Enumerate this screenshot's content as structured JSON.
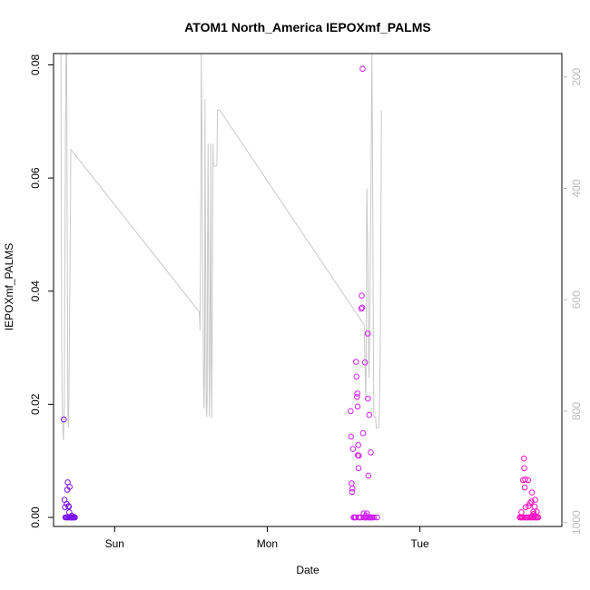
{
  "chart_data": {
    "type": "scatter",
    "title": "ATOM1 North_America IEPOXmf_PALMS",
    "xlabel": "Date",
    "ylabel": "IEPOXmf_PALMS",
    "x_ticks": [
      {
        "label": "Sun",
        "day": 1.0
      },
      {
        "label": "Mon",
        "day": 2.0
      },
      {
        "label": "Tue",
        "day": 3.0
      }
    ],
    "xlim_days": [
      0.6,
      3.93
    ],
    "y_ticks": [
      "0.00",
      "0.02",
      "0.04",
      "0.06",
      "0.08"
    ],
    "ylim": [
      -0.0016,
      0.082
    ],
    "y2_ticks": [
      "200",
      "400",
      "600",
      "800",
      "1000"
    ],
    "y2lim_reversed": [
      1007,
      158
    ],
    "series": [
      {
        "kind": "points",
        "color": "#7a10f0",
        "points": [
          [
            0.667,
            0.0173
          ],
          [
            0.672,
            0.0031
          ],
          [
            0.675,
            0.0018
          ],
          [
            0.678,
            0.0
          ],
          [
            0.683,
            0.0
          ],
          [
            0.686,
            0.0024
          ],
          [
            0.69,
            0.0049
          ],
          [
            0.693,
            0.0062
          ],
          [
            0.695,
            0.0
          ],
          [
            0.698,
            0.002
          ],
          [
            0.7,
            0.0019
          ],
          [
            0.703,
            0.0009
          ],
          [
            0.705,
            0.0054
          ],
          [
            0.708,
            0.0
          ],
          [
            0.712,
            0.0
          ],
          [
            0.716,
            0.0
          ],
          [
            0.72,
            0.0003
          ],
          [
            0.724,
            0.0
          ],
          [
            0.728,
            0.0
          ],
          [
            0.734,
            0.0001
          ],
          [
            0.74,
            0.0
          ],
          [
            0.688,
            0.0
          ],
          [
            0.702,
            0.0
          ],
          [
            0.718,
            0.0
          ],
          [
            0.736,
            0.0
          ]
        ]
      },
      {
        "kind": "points",
        "color": "#d020f0",
        "points": [
          [
            2.546,
            0.0188
          ],
          [
            2.549,
            0.0143
          ],
          [
            2.552,
            0.006
          ],
          [
            2.555,
            0.0045
          ],
          [
            2.558,
            0.0051
          ],
          [
            2.561,
            0.0121
          ],
          [
            2.565,
            0.0
          ],
          [
            2.571,
            0.0
          ],
          [
            2.575,
            0.0
          ],
          [
            2.582,
            0.0275
          ],
          [
            2.585,
            0.0249
          ],
          [
            2.588,
            0.0213
          ],
          [
            2.59,
            0.0219
          ],
          [
            2.592,
            0.0196
          ],
          [
            2.594,
            0.011
          ],
          [
            2.596,
            0.0128
          ],
          [
            2.598,
            0.0087
          ],
          [
            2.6,
            0.0109
          ],
          [
            2.605,
            0.0
          ],
          [
            2.612,
            0.0
          ],
          [
            2.616,
            0.0369
          ],
          [
            2.619,
            0.0392
          ],
          [
            2.622,
            0.0371
          ],
          [
            2.625,
            0.0793
          ],
          [
            2.628,
            0.0149
          ],
          [
            2.631,
            0.0
          ],
          [
            2.635,
            0.0
          ],
          [
            2.64,
            0.0274
          ],
          [
            2.644,
            0.0
          ],
          [
            2.648,
            0.0
          ],
          [
            2.652,
            0.0007
          ],
          [
            2.655,
            0.0
          ],
          [
            2.658,
            0.0325
          ],
          [
            2.66,
            0.021
          ],
          [
            2.662,
            0.0074
          ],
          [
            2.665,
            0.0
          ],
          [
            2.668,
            0.0181
          ],
          [
            2.671,
            0.0
          ],
          [
            2.675,
            0.0
          ],
          [
            2.678,
            0.0115
          ],
          [
            2.681,
            0.0
          ],
          [
            2.684,
            0.0
          ],
          [
            2.69,
            0.0
          ],
          [
            2.7,
            0.0
          ],
          [
            2.72,
            0.0
          ],
          [
            2.58,
            0.0
          ],
          [
            2.6,
            0.0
          ],
          [
            2.632,
            0.0007
          ],
          [
            2.646,
            0.0003
          ]
        ]
      },
      {
        "kind": "points",
        "color": "#ff10c0",
        "points": [
          [
            3.655,
            0.0
          ],
          [
            3.66,
            0.0
          ],
          [
            3.665,
            0.0009
          ],
          [
            3.668,
            0.0
          ],
          [
            3.672,
            0.0
          ],
          [
            3.676,
            0.0066
          ],
          [
            3.679,
            0.0
          ],
          [
            3.682,
            0.0104
          ],
          [
            3.684,
            0.0087
          ],
          [
            3.687,
            0.0053
          ],
          [
            3.69,
            0.0067
          ],
          [
            3.692,
            0.0018
          ],
          [
            3.695,
            0.0
          ],
          [
            3.7,
            0.0
          ],
          [
            3.704,
            0.0
          ],
          [
            3.708,
            0.0066
          ],
          [
            3.712,
            0.002
          ],
          [
            3.716,
            0.0
          ],
          [
            3.72,
            0.0025
          ],
          [
            3.724,
            0.0
          ],
          [
            3.728,
            0.0
          ],
          [
            3.731,
            0.0028
          ],
          [
            3.734,
            0.0044
          ],
          [
            3.737,
            0.0003
          ],
          [
            3.74,
            0.0
          ],
          [
            3.743,
            0.001
          ],
          [
            3.746,
            0.0006
          ],
          [
            3.749,
            0.0
          ],
          [
            3.752,
            0.0019
          ],
          [
            3.755,
            0.0031
          ],
          [
            3.758,
            0.0
          ],
          [
            3.762,
            0.0
          ],
          [
            3.766,
            0.001
          ],
          [
            3.77,
            0.0
          ],
          [
            3.775,
            0.0
          ]
        ]
      },
      {
        "kind": "line",
        "axis": "y2",
        "color": "#c8c8c8",
        "points": [
          [
            0.648,
            158
          ],
          [
            0.652,
            520
          ],
          [
            0.655,
            750
          ],
          [
            0.658,
            810
          ],
          [
            0.662,
            840
          ],
          [
            0.665,
            852
          ],
          [
            0.67,
            790
          ],
          [
            0.675,
            500
          ],
          [
            0.678,
            300
          ],
          [
            0.682,
            158
          ],
          [
            0.686,
            158
          ],
          [
            0.69,
            500
          ],
          [
            0.694,
            810
          ],
          [
            0.697,
            830
          ],
          [
            0.7,
            800
          ],
          [
            0.703,
            700
          ],
          [
            0.706,
            600
          ],
          [
            0.71,
            465
          ],
          [
            0.713,
            330
          ],
          [
            1.555,
            622
          ],
          [
            1.56,
            655
          ],
          [
            1.565,
            400
          ],
          [
            1.568,
            158
          ],
          [
            1.572,
            300
          ],
          [
            1.576,
            500
          ],
          [
            1.58,
            620
          ],
          [
            1.583,
            760
          ],
          [
            1.586,
            795
          ],
          [
            1.59,
            700
          ],
          [
            1.592,
            240
          ],
          [
            1.595,
            450
          ],
          [
            1.598,
            600
          ],
          [
            1.6,
            790
          ],
          [
            1.603,
            810
          ],
          [
            1.606,
            780
          ],
          [
            1.609,
            500
          ],
          [
            1.612,
            320
          ],
          [
            1.615,
            500
          ],
          [
            1.618,
            700
          ],
          [
            1.621,
            810
          ],
          [
            1.624,
            700
          ],
          [
            1.627,
            540
          ],
          [
            1.63,
            320
          ],
          [
            1.633,
            700
          ],
          [
            1.636,
            813
          ],
          [
            1.639,
            700
          ],
          [
            1.642,
            500
          ],
          [
            1.645,
            320
          ],
          [
            1.648,
            360
          ],
          [
            1.652,
            360
          ],
          [
            1.658,
            360
          ],
          [
            1.662,
            360
          ],
          [
            1.666,
            360
          ],
          [
            1.67,
            357
          ],
          [
            1.674,
            260
          ],
          [
            1.678,
            260
          ],
          [
            1.685,
            260
          ],
          [
            1.69,
            260
          ],
          [
            2.635,
            645
          ],
          [
            2.64,
            718
          ],
          [
            2.645,
            780
          ],
          [
            2.648,
            720
          ],
          [
            2.652,
            400
          ],
          [
            2.655,
            450
          ],
          [
            2.658,
            500
          ],
          [
            2.661,
            600
          ],
          [
            2.664,
            700
          ],
          [
            2.667,
            740
          ],
          [
            2.67,
            680
          ],
          [
            2.673,
            590
          ],
          [
            2.676,
            500
          ],
          [
            2.679,
            420
          ],
          [
            2.682,
            300
          ],
          [
            2.686,
            158
          ],
          [
            2.69,
            350
          ],
          [
            2.694,
            600
          ],
          [
            2.698,
            810
          ],
          [
            2.702,
            810
          ],
          [
            2.706,
            810
          ],
          [
            2.71,
            810
          ],
          [
            2.714,
            830
          ],
          [
            2.718,
            830
          ],
          [
            2.722,
            830
          ],
          [
            2.726,
            830
          ],
          [
            2.73,
            830
          ],
          [
            2.735,
            800
          ],
          [
            2.74,
            700
          ],
          [
            2.744,
            500
          ],
          [
            2.748,
            260
          ]
        ]
      }
    ]
  }
}
